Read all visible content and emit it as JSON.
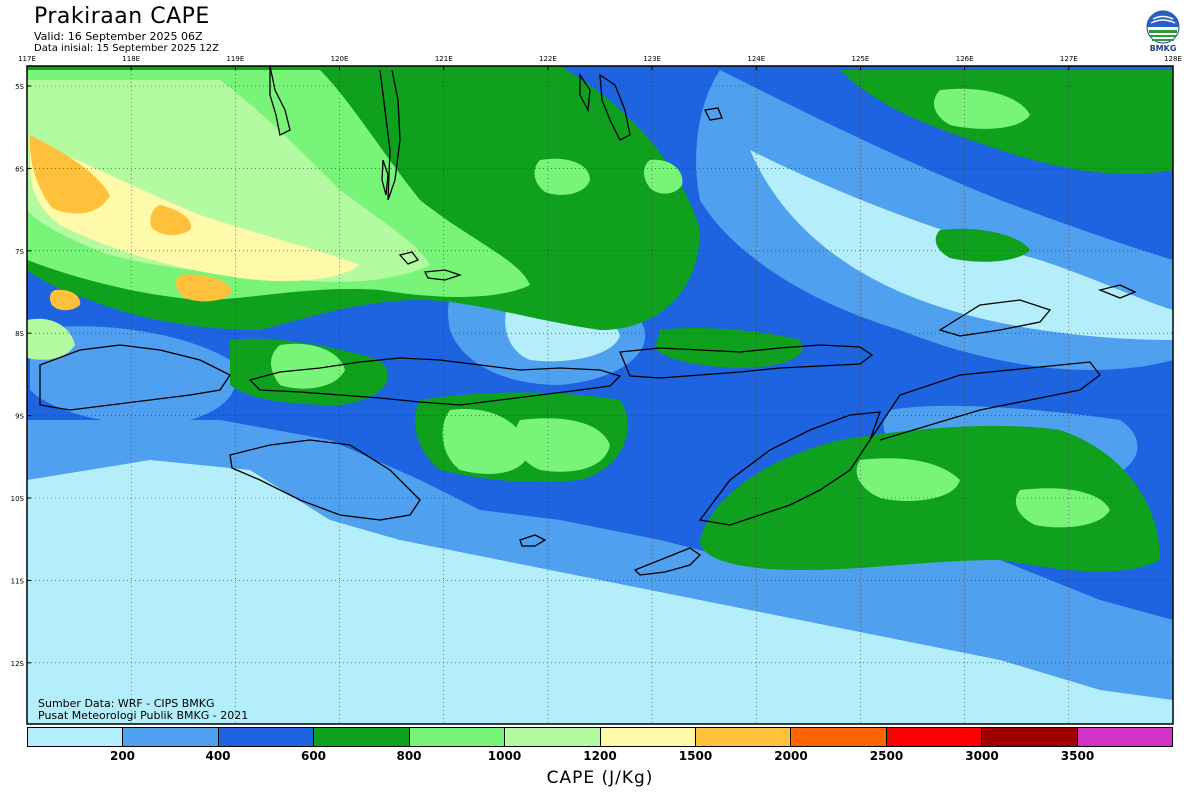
{
  "header": {
    "title": "Prakiraan CAPE",
    "valid": "Valid: 16 September 2025 06Z",
    "initial": "Data inisial: 15 September 2025 12Z"
  },
  "logo": {
    "text": "BMKG",
    "icon": "bmkg-logo-icon"
  },
  "axes": {
    "lon_ticks": [
      "117E",
      "118E",
      "119E",
      "120E",
      "121E",
      "122E",
      "123E",
      "124E",
      "125E",
      "126E",
      "127E",
      "128E"
    ],
    "lat_ticks": [
      "5S",
      "6S",
      "7S",
      "8S",
      "9S",
      "10S",
      "11S",
      "12S"
    ]
  },
  "source": {
    "line1": "Sumber Data: WRF - CIPS BMKG",
    "line2": "Pusat Meteorologi Publik BMKG - 2021"
  },
  "colorbar": {
    "label": "CAPE (J/Kg)",
    "thresholds": [
      "200",
      "400",
      "600",
      "800",
      "1000",
      "1200",
      "1500",
      "2000",
      "2500",
      "3000",
      "3500"
    ],
    "colors": [
      "#b4eefa",
      "#50a0f0",
      "#1e64e1",
      "#0fa01e",
      "#78f578",
      "#b4faa0",
      "#fffaaa",
      "#ffc03c",
      "#ff6400",
      "#fa0000",
      "#a00000",
      "#d232c8"
    ]
  }
}
